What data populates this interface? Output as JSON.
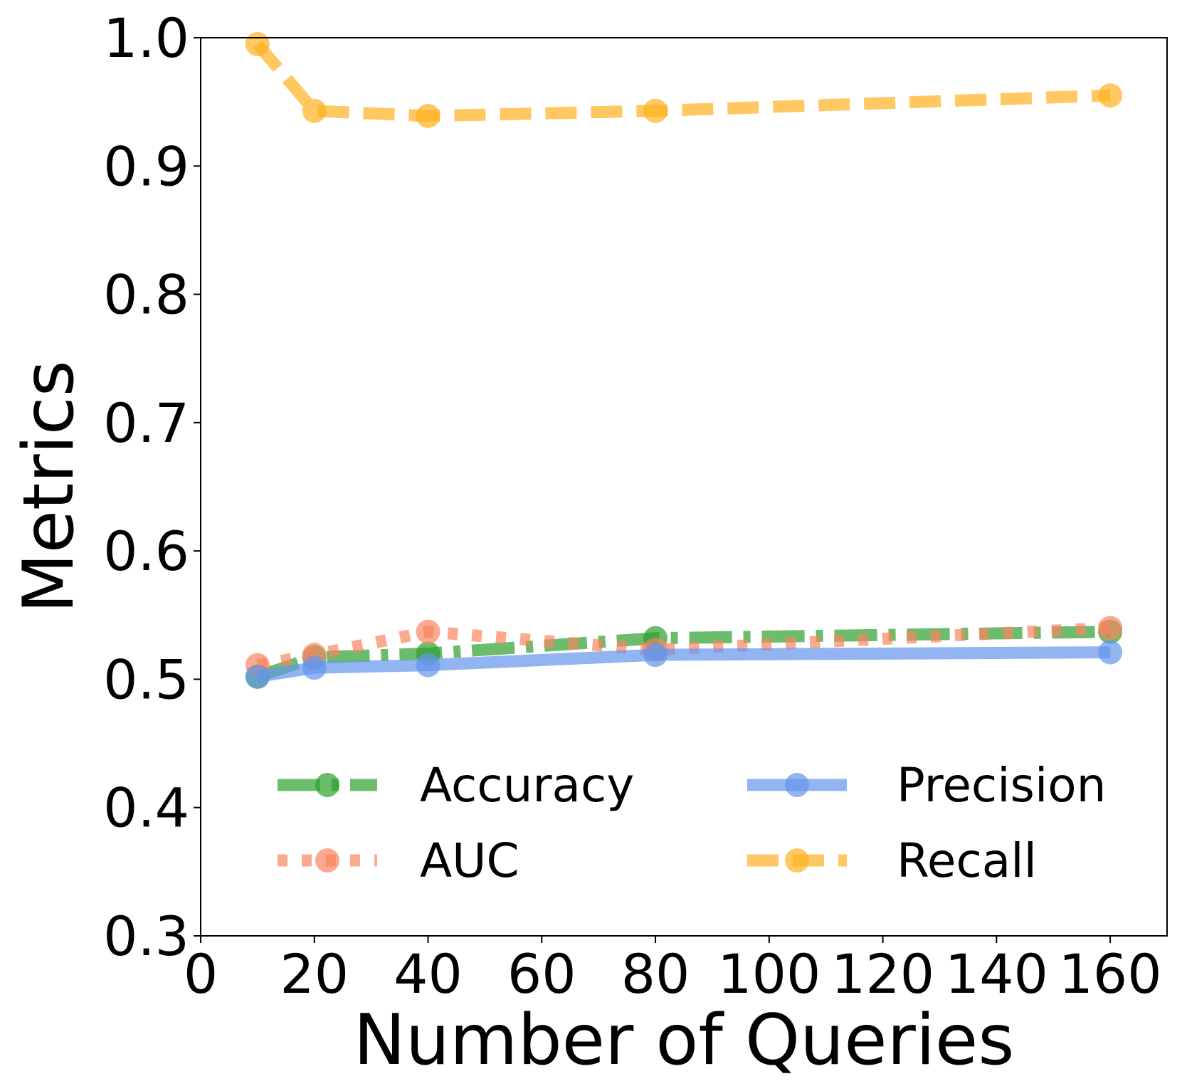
{
  "chart_data": {
    "type": "line",
    "xlabel": "Number of Queries",
    "ylabel": "Metrics",
    "xlim": [
      0,
      170
    ],
    "ylim": [
      0.3,
      1.0
    ],
    "xticks": [
      0,
      20,
      40,
      60,
      80,
      100,
      120,
      140,
      160
    ],
    "xtick_labels": [
      "0",
      "20",
      "40",
      "60",
      "80",
      "100",
      "120",
      "140",
      "160"
    ],
    "yticks": [
      0.3,
      0.4,
      0.5,
      0.6,
      0.7,
      0.8,
      0.9,
      1.0
    ],
    "ytick_labels": [
      "0.3",
      "0.4",
      "0.5",
      "0.6",
      "0.7",
      "0.8",
      "0.9",
      "1.0"
    ],
    "grid": false,
    "legend": {
      "placement": "lower center",
      "columns": 2
    },
    "x": [
      10,
      20,
      40,
      80,
      160
    ],
    "series": [
      {
        "name": "Accuracy",
        "values": [
          0.502,
          0.517,
          0.52,
          0.532,
          0.537
        ],
        "color": "#2ca02c",
        "style": "dashdot"
      },
      {
        "name": "AUC",
        "values": [
          0.511,
          0.519,
          0.537,
          0.523,
          0.54
        ],
        "color": "#fa8460",
        "style": "dotted"
      },
      {
        "name": "Precision",
        "values": [
          0.502,
          0.509,
          0.511,
          0.519,
          0.521
        ],
        "color": "#6495ed",
        "style": "solid"
      },
      {
        "name": "Recall",
        "values": [
          0.995,
          0.943,
          0.939,
          0.943,
          0.955
        ],
        "color": "#ffb020",
        "style": "dashed"
      }
    ]
  }
}
